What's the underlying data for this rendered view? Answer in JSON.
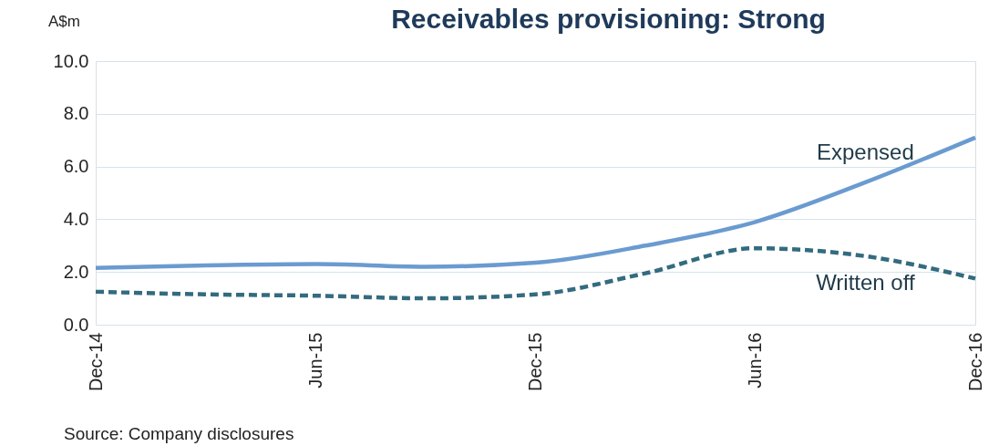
{
  "chart_data": {
    "type": "line",
    "title": "Receivables provisioning:  Strong",
    "ylabel": "A$m",
    "categories": [
      "Dec-14",
      null,
      "Jun-15",
      null,
      "Dec-15",
      null,
      "Jun-16",
      null,
      "Dec-16"
    ],
    "series": [
      {
        "name": "Expensed",
        "color": "#6a9bd0",
        "line_style": "solid",
        "values": [
          2.15,
          2.25,
          2.3,
          2.2,
          2.35,
          3.0,
          3.9,
          5.4,
          7.1
        ]
      },
      {
        "name": "Written off",
        "color": "#336b7f",
        "line_style": "dashed",
        "values": [
          1.25,
          1.15,
          1.1,
          1.0,
          1.15,
          1.95,
          2.9,
          2.6,
          1.75
        ]
      }
    ],
    "ylim": [
      0,
      10
    ],
    "yticks": [
      {
        "value": 0,
        "label": "0.0"
      },
      {
        "value": 2,
        "label": "2.0"
      },
      {
        "value": 4,
        "label": "4.0"
      },
      {
        "value": 6,
        "label": "6.0"
      },
      {
        "value": 8,
        "label": "8.0"
      },
      {
        "value": 10,
        "label": "10.0"
      }
    ],
    "grid": "y",
    "annotations": [
      "Source: Company disclosures"
    ]
  }
}
